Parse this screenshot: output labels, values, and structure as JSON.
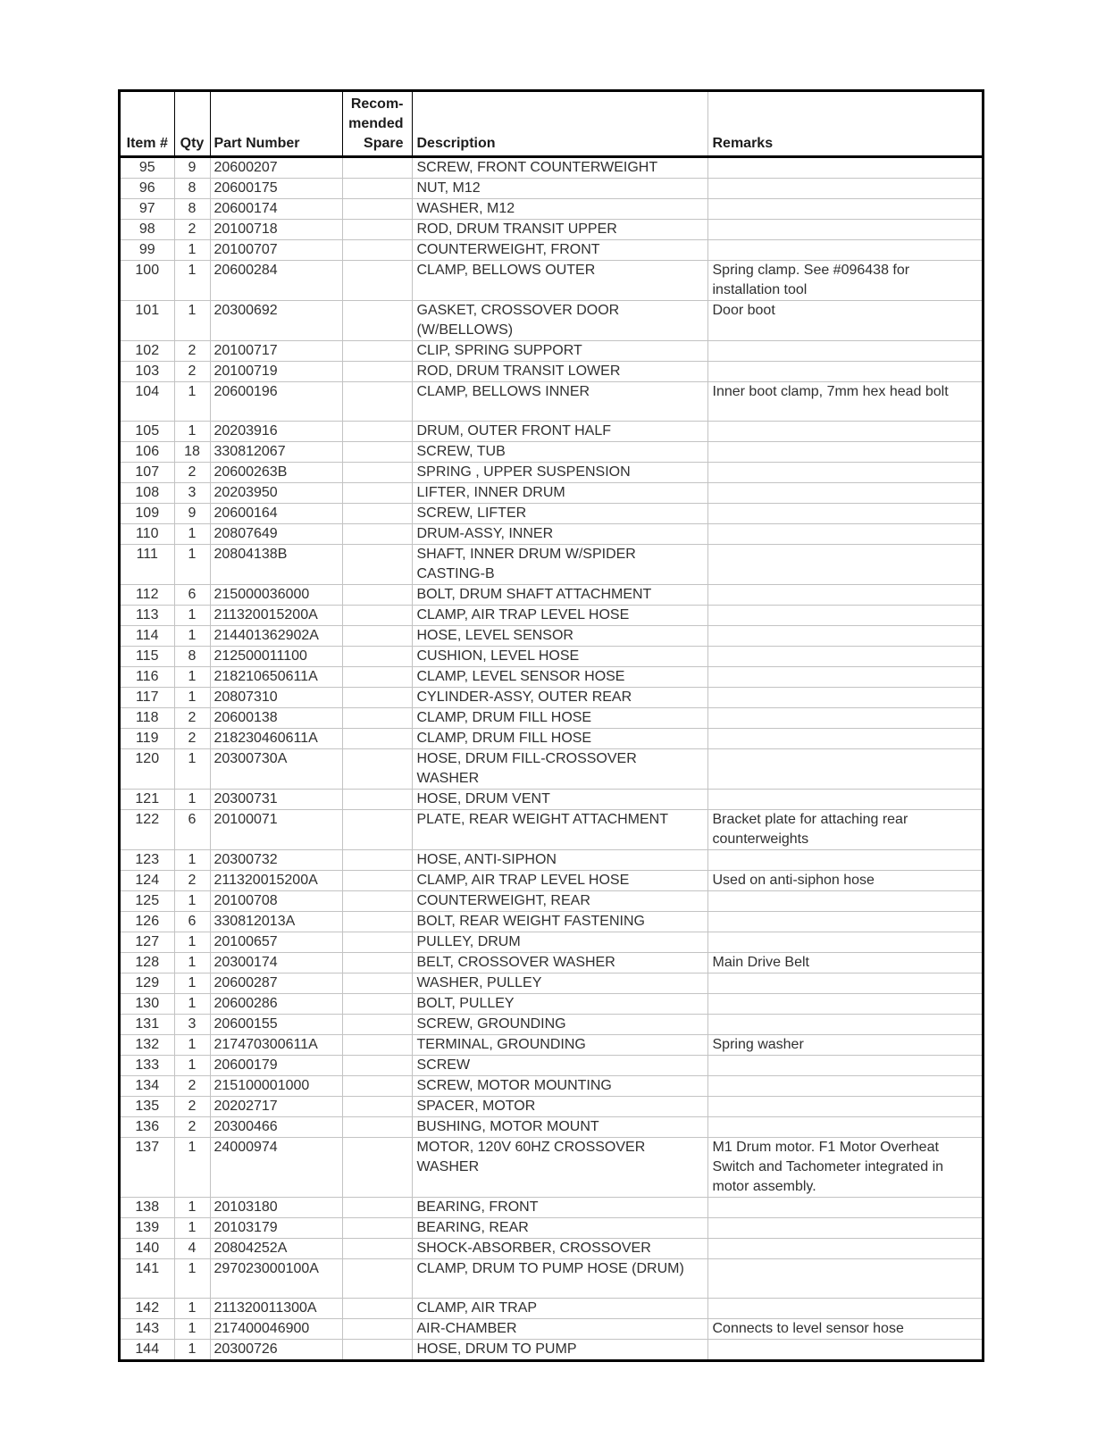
{
  "colors": {
    "outer_border": "#000000",
    "grid_line": "#c3c3c3",
    "header_text": "#1c1c1c",
    "body_text": "#303030"
  },
  "table": {
    "headers": {
      "item": "Item #",
      "qty": "Qty",
      "part_number": "Part Number",
      "spare": "Recom-\nmended\nSpare",
      "description": "Description",
      "remarks": "Remarks"
    },
    "rows": [
      {
        "item": "95",
        "qty": "9",
        "part": "20600207",
        "spare": "",
        "desc": "SCREW, FRONT COUNTERWEIGHT",
        "remarks": "",
        "lines": 1
      },
      {
        "item": "96",
        "qty": "8",
        "part": "20600175",
        "spare": "",
        "desc": "NUT, M12",
        "remarks": "",
        "lines": 1
      },
      {
        "item": "97",
        "qty": "8",
        "part": "20600174",
        "spare": "",
        "desc": "WASHER, M12",
        "remarks": "",
        "lines": 1
      },
      {
        "item": "98",
        "qty": "2",
        "part": "20100718",
        "spare": "",
        "desc": "ROD, DRUM TRANSIT UPPER",
        "remarks": "",
        "lines": 1
      },
      {
        "item": "99",
        "qty": "1",
        "part": "20100707",
        "spare": "",
        "desc": "COUNTERWEIGHT, FRONT",
        "remarks": "",
        "lines": 1
      },
      {
        "item": "100",
        "qty": "1",
        "part": "20600284",
        "spare": "",
        "desc": "CLAMP, BELLOWS OUTER",
        "remarks": "Spring clamp. See #096438 for\ninstallation tool",
        "lines": 2
      },
      {
        "item": "101",
        "qty": "1",
        "part": "20300692",
        "spare": "",
        "desc": "GASKET, CROSSOVER DOOR\n(W/BELLOWS)",
        "remarks": "Door boot",
        "lines": 2
      },
      {
        "item": "102",
        "qty": "2",
        "part": "20100717",
        "spare": "",
        "desc": "CLIP, SPRING SUPPORT",
        "remarks": "",
        "lines": 1
      },
      {
        "item": "103",
        "qty": "2",
        "part": "20100719",
        "spare": "",
        "desc": "ROD, DRUM TRANSIT LOWER",
        "remarks": "",
        "lines": 1
      },
      {
        "item": "104",
        "qty": "1",
        "part": "20600196",
        "spare": "",
        "desc": "CLAMP, BELLOWS INNER",
        "remarks": "Inner boot clamp, 7mm hex head bolt",
        "lines": 2
      },
      {
        "item": "105",
        "qty": "1",
        "part": "20203916",
        "spare": "",
        "desc": "DRUM, OUTER FRONT HALF",
        "remarks": "",
        "lines": 1
      },
      {
        "item": "106",
        "qty": "18",
        "part": "330812067",
        "spare": "",
        "desc": "SCREW, TUB",
        "remarks": "",
        "lines": 1
      },
      {
        "item": "107",
        "qty": "2",
        "part": "20600263B",
        "spare": "",
        "desc": "SPRING , UPPER SUSPENSION",
        "remarks": "",
        "lines": 1
      },
      {
        "item": "108",
        "qty": "3",
        "part": "20203950",
        "spare": "",
        "desc": "LIFTER, INNER DRUM",
        "remarks": "",
        "lines": 1
      },
      {
        "item": "109",
        "qty": "9",
        "part": "20600164",
        "spare": "",
        "desc": "SCREW, LIFTER",
        "remarks": "",
        "lines": 1
      },
      {
        "item": "110",
        "qty": "1",
        "part": "20807649",
        "spare": "",
        "desc": "DRUM-ASSY, INNER",
        "remarks": "",
        "lines": 1
      },
      {
        "item": "111",
        "qty": "1",
        "part": "20804138B",
        "spare": "",
        "desc": "SHAFT, INNER DRUM W/SPIDER\nCASTING-B",
        "remarks": "",
        "lines": 2
      },
      {
        "item": "112",
        "qty": "6",
        "part": "215000036000",
        "spare": "",
        "desc": "BOLT, DRUM SHAFT ATTACHMENT",
        "remarks": "",
        "lines": 1
      },
      {
        "item": "113",
        "qty": "1",
        "part": "211320015200A",
        "spare": "",
        "desc": "CLAMP, AIR TRAP LEVEL HOSE",
        "remarks": "",
        "lines": 1
      },
      {
        "item": "114",
        "qty": "1",
        "part": "214401362902A",
        "spare": "",
        "desc": "HOSE, LEVEL SENSOR",
        "remarks": "",
        "lines": 1
      },
      {
        "item": "115",
        "qty": "8",
        "part": "212500011100",
        "spare": "",
        "desc": "CUSHION, LEVEL HOSE",
        "remarks": "",
        "lines": 1
      },
      {
        "item": "116",
        "qty": "1",
        "part": "218210650611A",
        "spare": "",
        "desc": "CLAMP, LEVEL SENSOR HOSE",
        "remarks": "",
        "lines": 1
      },
      {
        "item": "117",
        "qty": "1",
        "part": "20807310",
        "spare": "",
        "desc": "CYLINDER-ASSY, OUTER REAR",
        "remarks": "",
        "lines": 1
      },
      {
        "item": "118",
        "qty": "2",
        "part": "20600138",
        "spare": "",
        "desc": "CLAMP, DRUM FILL HOSE",
        "remarks": "",
        "lines": 1
      },
      {
        "item": "119",
        "qty": "2",
        "part": "218230460611A",
        "spare": "",
        "desc": "CLAMP, DRUM FILL HOSE",
        "remarks": "",
        "lines": 1
      },
      {
        "item": "120",
        "qty": "1",
        "part": "20300730A",
        "spare": "",
        "desc": "HOSE, DRUM FILL-CROSSOVER\nWASHER",
        "remarks": "",
        "lines": 2
      },
      {
        "item": "121",
        "qty": "1",
        "part": "20300731",
        "spare": "",
        "desc": "HOSE, DRUM VENT",
        "remarks": "",
        "lines": 1
      },
      {
        "item": "122",
        "qty": "6",
        "part": "20100071",
        "spare": "",
        "desc": "PLATE, REAR WEIGHT ATTACHMENT",
        "remarks": "Bracket plate for attaching rear\ncounterweights",
        "lines": 2
      },
      {
        "item": "123",
        "qty": "1",
        "part": "20300732",
        "spare": "",
        "desc": "HOSE, ANTI-SIPHON",
        "remarks": "",
        "lines": 1
      },
      {
        "item": "124",
        "qty": "2",
        "part": "211320015200A",
        "spare": "",
        "desc": "CLAMP, AIR TRAP LEVEL HOSE",
        "remarks": "Used on anti-siphon hose",
        "lines": 1
      },
      {
        "item": "125",
        "qty": "1",
        "part": "20100708",
        "spare": "",
        "desc": "COUNTERWEIGHT, REAR",
        "remarks": "",
        "lines": 1
      },
      {
        "item": "126",
        "qty": "6",
        "part": "330812013A",
        "spare": "",
        "desc": "BOLT, REAR WEIGHT FASTENING",
        "remarks": "",
        "lines": 1
      },
      {
        "item": "127",
        "qty": "1",
        "part": "20100657",
        "spare": "",
        "desc": "PULLEY, DRUM",
        "remarks": "",
        "lines": 1
      },
      {
        "item": "128",
        "qty": "1",
        "part": "20300174",
        "spare": "",
        "desc": "BELT, CROSSOVER WASHER",
        "remarks": "Main Drive Belt",
        "lines": 1
      },
      {
        "item": "129",
        "qty": "1",
        "part": "20600287",
        "spare": "",
        "desc": "WASHER, PULLEY",
        "remarks": "",
        "lines": 1
      },
      {
        "item": "130",
        "qty": "1",
        "part": "20600286",
        "spare": "",
        "desc": "BOLT, PULLEY",
        "remarks": "",
        "lines": 1
      },
      {
        "item": "131",
        "qty": "3",
        "part": "20600155",
        "spare": "",
        "desc": "SCREW, GROUNDING",
        "remarks": "",
        "lines": 1
      },
      {
        "item": "132",
        "qty": "1",
        "part": "217470300611A",
        "spare": "",
        "desc": "TERMINAL, GROUNDING",
        "remarks": "Spring washer",
        "lines": 1
      },
      {
        "item": "133",
        "qty": "1",
        "part": "20600179",
        "spare": "",
        "desc": "SCREW",
        "remarks": "",
        "lines": 1
      },
      {
        "item": "134",
        "qty": "2",
        "part": "215100001000",
        "spare": "",
        "desc": "SCREW, MOTOR MOUNTING",
        "remarks": "",
        "lines": 1
      },
      {
        "item": "135",
        "qty": "2",
        "part": "20202717",
        "spare": "",
        "desc": "SPACER, MOTOR",
        "remarks": "",
        "lines": 1
      },
      {
        "item": "136",
        "qty": "2",
        "part": "20300466",
        "spare": "",
        "desc": "BUSHING, MOTOR MOUNT",
        "remarks": "",
        "lines": 1
      },
      {
        "item": "137",
        "qty": "1",
        "part": "24000974",
        "spare": "",
        "desc": "MOTOR, 120V 60HZ CROSSOVER\nWASHER",
        "remarks": "M1 Drum motor. F1 Motor Overheat\nSwitch and Tachometer integrated in\nmotor assembly.",
        "lines": 3
      },
      {
        "item": "138",
        "qty": "1",
        "part": "20103180",
        "spare": "",
        "desc": "BEARING, FRONT",
        "remarks": "",
        "lines": 1
      },
      {
        "item": "139",
        "qty": "1",
        "part": "20103179",
        "spare": "",
        "desc": "BEARING, REAR",
        "remarks": "",
        "lines": 1
      },
      {
        "item": "140",
        "qty": "4",
        "part": "20804252A",
        "spare": "",
        "desc": "SHOCK-ABSORBER, CROSSOVER",
        "remarks": "",
        "lines": 1
      },
      {
        "item": "141",
        "qty": "1",
        "part": "297023000100A",
        "spare": "",
        "desc": "CLAMP, DRUM TO PUMP HOSE (DRUM)",
        "remarks": "",
        "lines": 2
      },
      {
        "item": "142",
        "qty": "1",
        "part": "211320011300A",
        "spare": "",
        "desc": "CLAMP, AIR TRAP",
        "remarks": "",
        "lines": 1
      },
      {
        "item": "143",
        "qty": "1",
        "part": "217400046900",
        "spare": "",
        "desc": "AIR-CHAMBER",
        "remarks": "Connects to level sensor hose",
        "lines": 1
      },
      {
        "item": "144",
        "qty": "1",
        "part": "20300726",
        "spare": "",
        "desc": "HOSE, DRUM TO PUMP",
        "remarks": "",
        "lines": 1
      }
    ]
  }
}
